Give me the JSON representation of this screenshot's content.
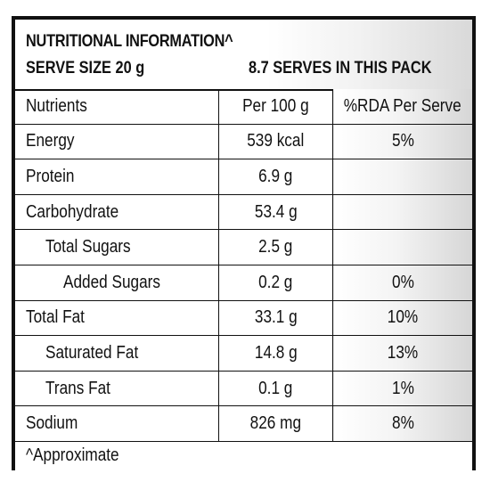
{
  "label": {
    "title": "NUTRITIONAL INFORMATION^",
    "serve_size": "SERVE SIZE 20 g",
    "serves_per_pack": "8.7 SERVES IN THIS PACK",
    "columns": [
      "Nutrients",
      "Per 100 g",
      "%RDA Per Serve"
    ],
    "rows": [
      {
        "name": "Energy",
        "per100": "539 kcal",
        "rda": "5%",
        "indent": 0
      },
      {
        "name": "Protein",
        "per100": "6.9 g",
        "rda": "",
        "indent": 0
      },
      {
        "name": "Carbohydrate",
        "per100": "53.4 g",
        "rda": "",
        "indent": 0
      },
      {
        "name": "Total Sugars",
        "per100": "2.5 g",
        "rda": "",
        "indent": 1
      },
      {
        "name": "Added Sugars",
        "per100": "0.2 g",
        "rda": "0%",
        "indent": 2
      },
      {
        "name": "Total Fat",
        "per100": "33.1 g",
        "rda": "10%",
        "indent": 0
      },
      {
        "name": "Saturated Fat",
        "per100": "14.8 g",
        "rda": "13%",
        "indent": 1
      },
      {
        "name": "Trans Fat",
        "per100": "0.1 g",
        "rda": "1%",
        "indent": 1
      },
      {
        "name": "Sodium",
        "per100": "826 mg",
        "rda": "8%",
        "indent": 0
      }
    ],
    "footnote": "^Approximate"
  }
}
